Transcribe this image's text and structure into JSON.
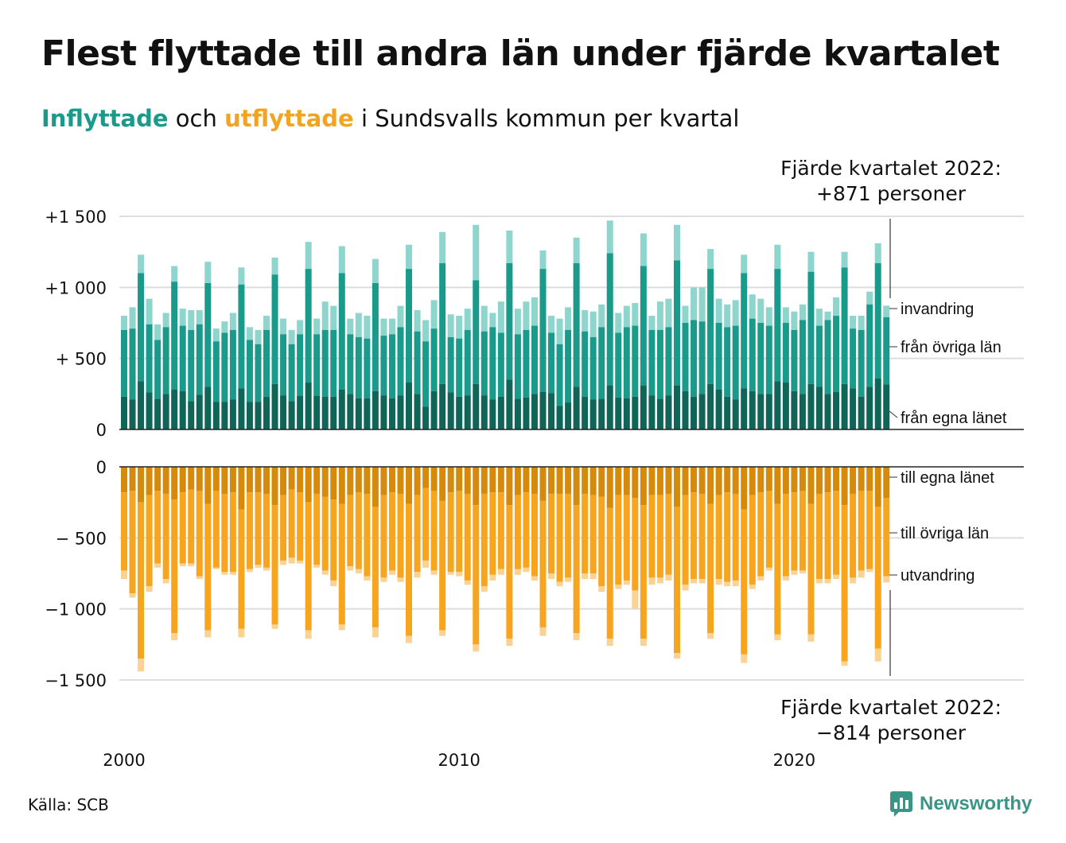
{
  "title": "Flest flyttade till andra län under fjärde kvartalet",
  "subtitle": {
    "in_word": "Inflyttade",
    "connector": "och",
    "out_word": "utflyttade",
    "rest": "i Sundsvalls kommun per kvartal"
  },
  "annotations": {
    "top_line1": "Fjärde kvartalet 2022:",
    "top_line2": "+871 personer",
    "bottom_line1": "Fjärde kvartalet 2022:",
    "bottom_line2": "−814 personer"
  },
  "source": "Källa: SCB",
  "brand": "Newsworthy",
  "colors": {
    "in_own": "#0e6558",
    "in_other": "#1a9a8a",
    "in_abroad": "#8ed5cd",
    "out_own": "#d68a0c",
    "out_other": "#f7a41e",
    "out_abroad": "#fad293",
    "subtitle_in": "#1a9a8a",
    "subtitle_out": "#f3a322",
    "brand": "#3a9585"
  },
  "chart_data": {
    "type": "bar",
    "stacked": true,
    "start_year": 2000,
    "start_quarter": 1,
    "end_year": 2022,
    "end_quarter": 4,
    "y_ticks_top": [
      "+1 500",
      "+1 000",
      "+  500",
      "0"
    ],
    "y_ticks_bottom": [
      "0",
      "−  500",
      "−1 000",
      "−1 500"
    ],
    "x_ticks": [
      "2000",
      "2010",
      "2020"
    ],
    "ylim_top": [
      0,
      1500
    ],
    "ylim_bottom": [
      -1500,
      0
    ],
    "grid": true,
    "top_labels": [
      "invandring",
      "från övriga län",
      "från egna länet"
    ],
    "bottom_labels": [
      "till egna länet",
      "till övriga län",
      "utvandring"
    ],
    "q4_2022_totals": {
      "in": 871,
      "out": -814
    },
    "in_total": [
      800,
      860,
      1230,
      920,
      740,
      820,
      1150,
      850,
      840,
      840,
      1180,
      710,
      760,
      820,
      1140,
      720,
      700,
      800,
      1210,
      780,
      700,
      770,
      1320,
      780,
      900,
      870,
      1290,
      780,
      820,
      800,
      1200,
      780,
      780,
      870,
      1300,
      840,
      770,
      910,
      1390,
      810,
      800,
      850,
      1440,
      870,
      820,
      900,
      1400,
      850,
      900,
      930,
      1260,
      800,
      780,
      860,
      1350,
      840,
      830,
      880,
      1470,
      820,
      870,
      890,
      1380,
      800,
      900,
      920,
      1440,
      870,
      1000,
      1000,
      1270,
      920,
      880,
      910,
      1230,
      950,
      920,
      860,
      1300,
      860,
      830,
      880,
      1250,
      850,
      830,
      930,
      1250,
      800,
      800,
      970,
      1310,
      871
    ],
    "in_other": [
      700,
      710,
      1100,
      740,
      630,
      720,
      1040,
      730,
      700,
      740,
      1030,
      620,
      680,
      700,
      1020,
      630,
      600,
      700,
      1090,
      670,
      600,
      670,
      1130,
      670,
      700,
      700,
      1100,
      670,
      650,
      640,
      1030,
      660,
      670,
      720,
      1130,
      690,
      620,
      710,
      1170,
      650,
      640,
      700,
      1050,
      690,
      720,
      680,
      1170,
      670,
      700,
      730,
      1130,
      680,
      600,
      700,
      1170,
      690,
      650,
      720,
      1240,
      680,
      720,
      730,
      1150,
      700,
      700,
      720,
      1190,
      750,
      770,
      760,
      1130,
      750,
      720,
      730,
      1100,
      780,
      750,
      730,
      1130,
      750,
      700,
      770,
      1110,
      730,
      770,
      800,
      1140,
      710,
      700,
      880,
      1170,
      790
    ],
    "in_own": [
      230,
      210,
      340,
      260,
      215,
      250,
      280,
      270,
      200,
      245,
      300,
      195,
      195,
      210,
      290,
      195,
      195,
      230,
      320,
      240,
      200,
      235,
      330,
      235,
      230,
      230,
      280,
      250,
      220,
      220,
      270,
      240,
      220,
      240,
      330,
      250,
      160,
      270,
      320,
      260,
      230,
      240,
      320,
      240,
      210,
      230,
      350,
      215,
      225,
      250,
      265,
      255,
      165,
      190,
      300,
      230,
      210,
      215,
      310,
      225,
      220,
      230,
      310,
      240,
      215,
      240,
      310,
      270,
      230,
      250,
      320,
      280,
      230,
      210,
      290,
      270,
      250,
      250,
      340,
      330,
      270,
      250,
      320,
      300,
      250,
      265,
      320,
      290,
      230,
      300,
      360,
      316
    ],
    "out_total": [
      -790,
      -920,
      -1440,
      -880,
      -710,
      -820,
      -1220,
      -700,
      -700,
      -790,
      -1200,
      -720,
      -760,
      -760,
      -1200,
      -740,
      -710,
      -730,
      -1140,
      -690,
      -680,
      -680,
      -1210,
      -710,
      -760,
      -840,
      -1150,
      -730,
      -750,
      -800,
      -1200,
      -810,
      -760,
      -810,
      -1240,
      -780,
      -710,
      -760,
      -1190,
      -760,
      -770,
      -830,
      -1300,
      -880,
      -800,
      -760,
      -1260,
      -760,
      -740,
      -800,
      -1190,
      -790,
      -840,
      -810,
      -1220,
      -790,
      -790,
      -880,
      -1260,
      -860,
      -830,
      -1000,
      -1260,
      -830,
      -820,
      -800,
      -1350,
      -870,
      -820,
      -820,
      -1210,
      -830,
      -840,
      -840,
      -1380,
      -860,
      -800,
      -730,
      -1220,
      -800,
      -760,
      -750,
      -1230,
      -820,
      -820,
      -790,
      -1400,
      -820,
      -780,
      -740,
      -1370,
      -814
    ],
    "out_own": [
      -180,
      -170,
      -250,
      -200,
      -170,
      -190,
      -230,
      -180,
      -160,
      -170,
      -260,
      -170,
      -190,
      -180,
      -300,
      -180,
      -180,
      -190,
      -270,
      -200,
      -160,
      -180,
      -250,
      -190,
      -210,
      -230,
      -260,
      -200,
      -180,
      -190,
      -280,
      -200,
      -180,
      -190,
      -260,
      -200,
      -150,
      -170,
      -240,
      -180,
      -170,
      -190,
      -270,
      -190,
      -180,
      -180,
      -270,
      -200,
      -180,
      -190,
      -240,
      -190,
      -190,
      -190,
      -270,
      -190,
      -200,
      -210,
      -290,
      -200,
      -200,
      -220,
      -270,
      -200,
      -200,
      -190,
      -280,
      -200,
      -180,
      -190,
      -260,
      -200,
      -180,
      -190,
      -300,
      -200,
      -180,
      -170,
      -260,
      -190,
      -180,
      -170,
      -260,
      -190,
      -180,
      -170,
      -270,
      -190,
      -170,
      -170,
      -280,
      -220
    ],
    "out_other": [
      -730,
      -890,
      -1350,
      -840,
      -680,
      -790,
      -1170,
      -680,
      -680,
      -770,
      -1150,
      -710,
      -740,
      -740,
      -1140,
      -720,
      -690,
      -710,
      -1110,
      -660,
      -640,
      -660,
      -1150,
      -690,
      -730,
      -800,
      -1110,
      -700,
      -720,
      -770,
      -1130,
      -780,
      -730,
      -780,
      -1190,
      -740,
      -660,
      -730,
      -1150,
      -740,
      -740,
      -800,
      -1250,
      -840,
      -760,
      -720,
      -1210,
      -720,
      -710,
      -770,
      -1130,
      -750,
      -810,
      -780,
      -1170,
      -750,
      -750,
      -840,
      -1210,
      -830,
      -800,
      -870,
      -1210,
      -780,
      -780,
      -760,
      -1310,
      -830,
      -790,
      -790,
      -1170,
      -790,
      -810,
      -800,
      -1320,
      -830,
      -770,
      -710,
      -1180,
      -770,
      -730,
      -730,
      -1180,
      -790,
      -790,
      -760,
      -1370,
      -780,
      -730,
      -720,
      -1280,
      -770
    ]
  }
}
